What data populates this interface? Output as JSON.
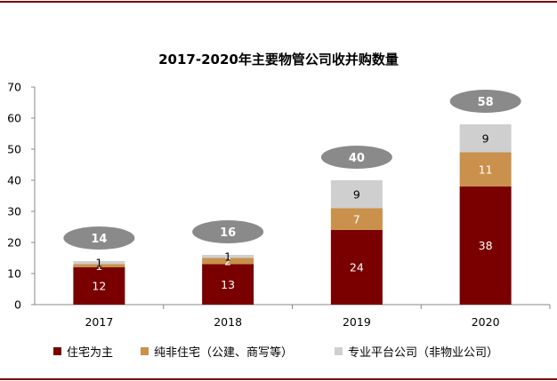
{
  "colors": {
    "residential": "#7a0000",
    "non_residential": "#c9914b",
    "platform": "#cfcfcf",
    "total_ellipse": "#8a8a8a",
    "frame": "#7a0000"
  },
  "chart_data": {
    "type": "bar",
    "stacked": true,
    "title": "2017-2020年主要物管公司收并购数量",
    "categories": [
      "2017",
      "2018",
      "2019",
      "2020"
    ],
    "series": [
      {
        "name": "住宅为主",
        "values": [
          12,
          13,
          24,
          38
        ]
      },
      {
        "name": "纯非住宅（公建、商写等）",
        "values": [
          1,
          2,
          7,
          11
        ]
      },
      {
        "name": "专业平台公司（非物业公司）",
        "values": [
          1,
          1,
          9,
          9
        ]
      }
    ],
    "totals": [
      14,
      16,
      40,
      58
    ],
    "ylim": [
      0,
      70
    ],
    "yticks": [
      "0",
      "10",
      "20",
      "30",
      "40",
      "50",
      "60",
      "70"
    ],
    "legend_position": "bottom",
    "grid": false
  }
}
